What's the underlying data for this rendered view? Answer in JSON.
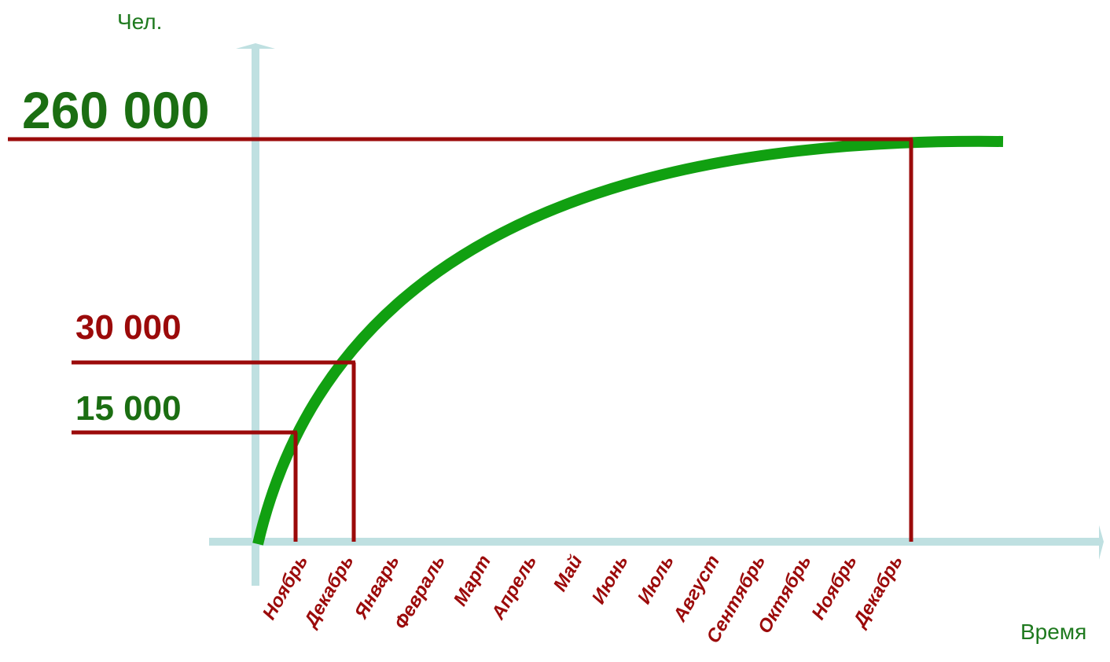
{
  "colors": {
    "axis": "#bfe0e1",
    "curve": "#11a011",
    "markers": "#9b0a0a",
    "green_text": "#1b6e12",
    "red_text": "#9b0a0a"
  },
  "chart_data": {
    "type": "line",
    "ylabel": "Чел.",
    "xlabel": "Время",
    "categories": [
      "Ноябрь",
      "Декабрь",
      "Январь",
      "Февраль",
      "Март",
      "Апрель",
      "Май",
      "Июнь",
      "Июль",
      "Август",
      "Сентябрь",
      "Октябрь",
      "Ноябрь",
      "Декабрь"
    ],
    "value_labels": [
      {
        "text": "260 000",
        "value": 260000,
        "color": "green"
      },
      {
        "text": "30 000",
        "value": 30000,
        "color": "red"
      },
      {
        "text": "15 000",
        "value": 15000,
        "color": "green"
      }
    ],
    "markers": [
      {
        "category_index": 0,
        "value": 15000
      },
      {
        "category_index": 1,
        "value": 30000
      },
      {
        "category_index": 13,
        "value": 260000
      }
    ],
    "grid": false
  }
}
